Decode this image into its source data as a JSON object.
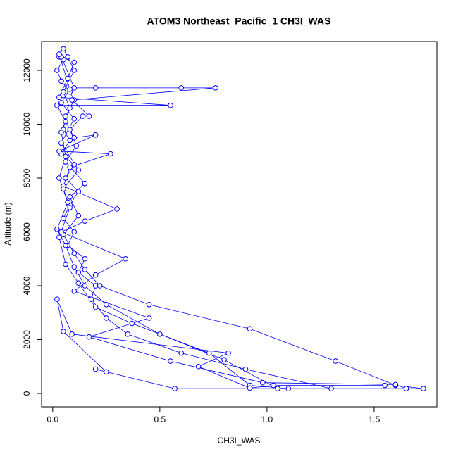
{
  "chart_data": {
    "type": "line",
    "title": "ATOM3 Northeast_Pacific_1 CH3I_WAS",
    "x_label": "CH3I_WAS",
    "y_label": "Altitude (m)",
    "color": "#0000ff",
    "x": [
      0.03,
      0.05,
      0.02,
      0.04,
      0.08,
      0.1,
      0.06,
      0.05,
      0.08,
      0.04,
      0.1,
      0.06,
      0.12,
      0.08,
      0.05,
      0.1,
      0.07,
      0.15,
      0.12,
      0.2,
      0.18,
      0.25,
      0.35,
      0.6,
      0.9,
      1.3,
      1.65,
      1.73,
      1.6,
      1.32,
      0.92,
      0.45,
      0.22,
      0.15,
      0.1,
      0.05,
      0.12,
      0.08,
      0.15,
      0.06,
      0.11,
      0.08,
      0.14,
      0.17,
      0.09,
      0.76,
      0.6,
      0.2,
      0.1,
      0.04,
      0.1,
      0.07,
      0.03,
      0.55,
      0.02,
      0.06,
      0.1,
      0.2,
      0.03,
      0.27,
      0.08,
      0.05,
      0.3,
      0.15,
      0.04,
      0.34,
      0.2,
      0.1,
      0.45,
      0.17,
      0.55,
      0.98,
      1.6,
      1.65,
      1.1,
      0.92,
      0.73,
      0.37,
      0.2,
      0.12,
      0.06,
      0.03,
      0.08,
      0.05,
      0.12,
      0.04,
      0.1,
      0.04,
      0.08,
      0.03,
      0.05,
      0.07,
      0.1,
      0.05,
      0.08,
      0.04,
      0.06,
      0.03,
      0.07,
      0.02,
      0.06,
      0.1,
      0.15,
      0.25,
      0.5,
      0.8,
      1.05,
      0.57,
      0.2,
      0.25,
      0.05,
      0.02,
      0.09,
      0.82,
      0.68,
      0.92,
      1.03,
      1.55
    ],
    "values": [
      12500,
      12400,
      12000,
      11600,
      11200,
      10900,
      10300,
      9800,
      9400,
      8900,
      8500,
      8000,
      7500,
      7000,
      6500,
      6000,
      5500,
      5000,
      4500,
      4000,
      3500,
      2800,
      2200,
      1500,
      900,
      180,
      180,
      180,
      300,
      1200,
      2400,
      3300,
      4000,
      4600,
      5200,
      5900,
      6600,
      7300,
      7800,
      8600,
      9200,
      9800,
      10300,
      10300,
      10900,
      11350,
      11350,
      11350,
      11350,
      12500,
      12300,
      11700,
      11000,
      10700,
      10700,
      10100,
      9500,
      9600,
      9000,
      8900,
      8400,
      7700,
      6850,
      6400,
      6000,
      5000,
      4400,
      3800,
      2800,
      2100,
      1200,
      400,
      330,
      180,
      180,
      300,
      1500,
      2600,
      3200,
      4100,
      4800,
      5800,
      6900,
      7600,
      8300,
      9300,
      10200,
      10800,
      11300,
      12600,
      12800,
      12500,
      12000,
      11200,
      10600,
      9700,
      8800,
      8000,
      7100,
      6100,
      5500,
      4700,
      4000,
      3300,
      2200,
      1250,
      180,
      180,
      900,
      800,
      2300,
      3500,
      2200,
      1500,
      1000,
      200,
      300,
      300
    ],
    "xlim": [
      -0.052,
      1.793
    ],
    "ylim": [
      -497,
      13072
    ],
    "xticks": [
      {
        "value": 0,
        "label": "0.0"
      },
      0.5,
      {
        "value": 1,
        "label": "1.0"
      },
      1.5
    ],
    "yticks": [
      0,
      2000,
      4000,
      6000,
      8000,
      10000,
      12000
    ]
  }
}
